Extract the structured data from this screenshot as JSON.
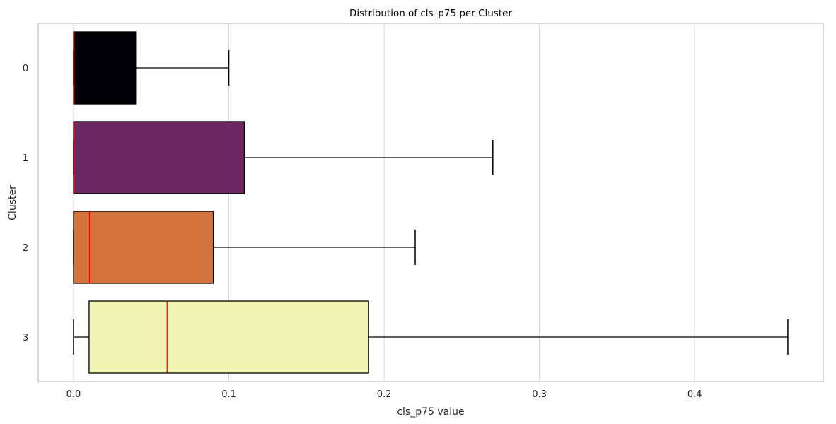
{
  "chart_data": {
    "type": "boxplot",
    "orientation": "horizontal",
    "title": "Distribution of cls_p75 per Cluster",
    "xlabel": "cls_p75 value",
    "ylabel": "Cluster",
    "xlim": [
      -0.023,
      0.483
    ],
    "xticks": [
      0.0,
      0.1,
      0.2,
      0.3,
      0.4
    ],
    "xtick_labels": [
      "0.0",
      "0.1",
      "0.2",
      "0.3",
      "0.4"
    ],
    "grid": "vertical",
    "categories": [
      "0",
      "1",
      "2",
      "3"
    ],
    "series": [
      {
        "cluster": "0",
        "min": 0.0,
        "q1": 0.0,
        "median": 0.0,
        "q3": 0.04,
        "max": 0.1,
        "color": "#000004"
      },
      {
        "cluster": "1",
        "min": 0.0,
        "q1": 0.0,
        "median": 0.0,
        "q3": 0.11,
        "max": 0.27,
        "color": "#6b2761"
      },
      {
        "cluster": "2",
        "min": 0.0,
        "q1": 0.0,
        "median": 0.01,
        "q3": 0.09,
        "max": 0.22,
        "color": "#d4733e"
      },
      {
        "cluster": "3",
        "min": 0.0,
        "q1": 0.01,
        "median": 0.06,
        "q3": 0.19,
        "max": 0.46,
        "color": "#f0f4b2"
      }
    ],
    "median_color": "#ff0000"
  }
}
